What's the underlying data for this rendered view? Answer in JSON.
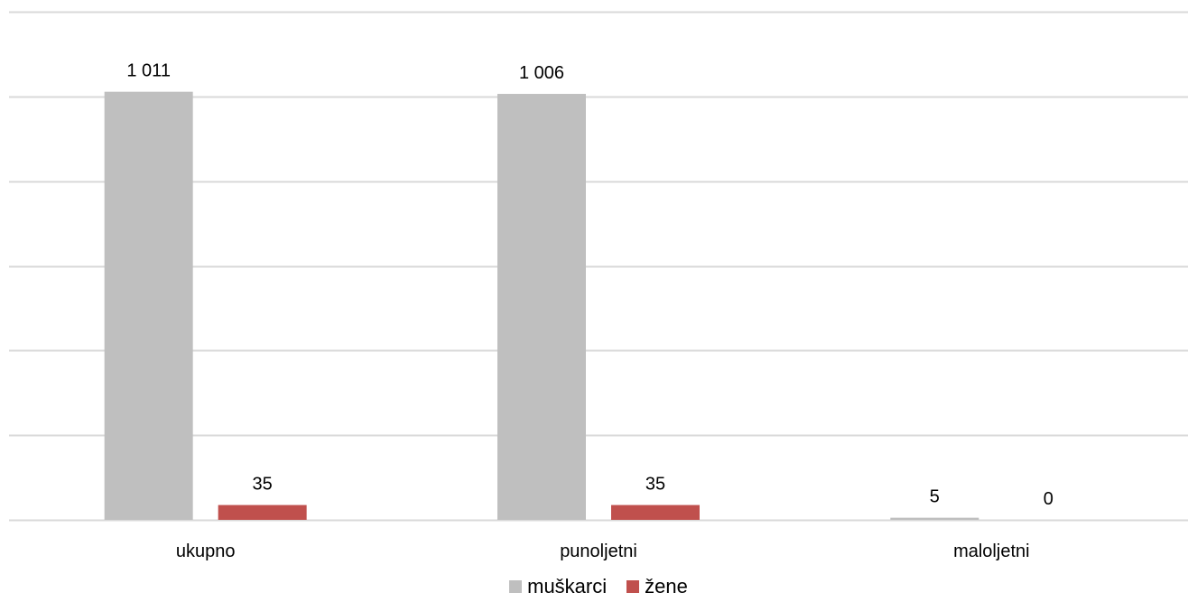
{
  "chart_data": {
    "type": "bar",
    "categories": [
      "ukupno",
      "punoljetni",
      "maloljetni"
    ],
    "series": [
      {
        "name": "muškarci",
        "values": [
          1011,
          1006,
          5
        ],
        "labels": [
          "1 011",
          "1 006",
          "5"
        ],
        "color": "#BFBFBF"
      },
      {
        "name": "žene",
        "values": [
          35,
          35,
          0
        ],
        "labels": [
          "35",
          "35",
          "0"
        ],
        "color": "#C0504D"
      }
    ],
    "ylim": [
      0,
      1200
    ],
    "yticks": [
      0,
      200,
      400,
      600,
      800,
      1000,
      1200
    ],
    "grid": true,
    "y_axis_labels_visible": false,
    "legend_position": "bottom",
    "title": "",
    "xlabel": "",
    "ylabel": "",
    "gridline_color": "#D9D9D9"
  }
}
